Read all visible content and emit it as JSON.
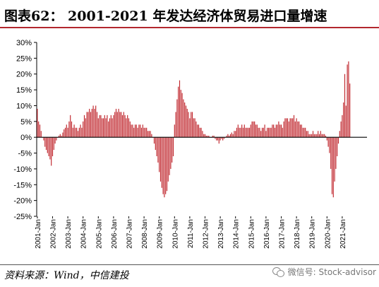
{
  "title": "图表62：  2001-2021 年发达经济体贸易进口量增速",
  "source": "资料来源：Wind，中信建投",
  "watermark": "微信号: Stock-advisor",
  "colors": {
    "bar": "#c0272d",
    "axis": "#000000",
    "title_rule": "#b3272e",
    "text": "#000000"
  },
  "chart_data": {
    "type": "bar",
    "title": "",
    "xlabel": "",
    "ylabel": "",
    "ylim": [
      -25,
      30
    ],
    "yticks": [
      "-25%",
      "-20%",
      "-15%",
      "-10%",
      "-5%",
      "0%",
      "5%",
      "10%",
      "15%",
      "20%",
      "25%",
      "30%"
    ],
    "xticks": [
      "2001-Jan",
      "2002-Jan",
      "2003-Jan",
      "2004-Jan",
      "2005-Jan",
      "2006-Jan",
      "2007-Jan",
      "2008-Jan",
      "2009-Jan",
      "2010-Jan",
      "2011-Jan",
      "2012-Jan",
      "2013-Jan",
      "2014-Jan",
      "2015-Jan",
      "2016-Jan",
      "2017-Jan",
      "2018-Jan",
      "2019-Jan",
      "2020-Jan",
      "2021-Jan"
    ],
    "grid": false,
    "legend": "none",
    "start": "2001-01",
    "frequency": "monthly",
    "series": [
      {
        "values": [
          9,
          5,
          4,
          2,
          0,
          -1,
          -3,
          -4,
          -5,
          -6,
          -7,
          -9,
          -6,
          -4,
          -2,
          -1,
          0,
          0.5,
          1,
          0.5,
          1.5,
          2.5,
          3,
          4,
          3,
          5,
          7,
          5,
          3,
          4,
          3,
          3,
          2,
          3,
          4,
          3,
          5,
          7,
          6,
          8,
          8,
          9,
          8,
          9,
          10,
          9,
          10,
          8,
          6,
          7,
          7,
          6,
          6,
          7,
          6,
          7,
          5,
          6,
          7,
          6,
          7,
          8,
          9,
          8,
          9,
          8,
          8,
          7,
          8,
          7,
          6,
          7,
          6,
          5,
          4,
          4,
          3,
          4,
          4,
          3,
          4,
          4,
          3,
          4,
          3,
          3,
          3,
          2,
          2,
          2,
          1,
          0,
          -2,
          -4,
          -6,
          -8,
          -11,
          -14,
          -16,
          -18,
          -19,
          -18,
          -17,
          -14,
          -12,
          -10,
          -8,
          -6,
          4,
          8,
          12,
          16,
          18,
          15,
          14,
          12,
          11,
          10,
          9,
          8,
          6,
          8,
          8,
          6,
          6,
          5,
          4,
          4,
          3,
          3,
          2,
          1,
          1,
          0.5,
          0.5,
          0.5,
          0,
          0,
          0.5,
          0.5,
          -0.5,
          -1,
          -1,
          -2,
          -1,
          -0.5,
          -1,
          -0.5,
          0,
          0.5,
          1,
          0.5,
          1,
          1.5,
          1,
          2,
          2,
          3,
          4,
          3,
          3,
          4,
          3,
          4,
          3,
          3,
          3,
          3,
          4,
          5,
          5,
          5,
          4,
          4,
          3,
          3,
          2,
          3,
          3,
          4,
          2,
          3,
          3,
          3,
          3,
          4,
          4,
          3,
          4,
          4,
          5,
          4,
          4,
          3,
          5,
          6,
          6,
          6,
          5,
          6,
          6,
          6,
          7,
          5,
          6,
          5,
          5,
          4,
          4,
          3,
          3,
          3,
          2,
          2,
          1,
          1,
          1,
          2,
          1,
          1,
          1,
          2,
          1,
          2,
          1,
          1,
          1,
          0.5,
          -1,
          -3,
          -5,
          -10,
          -18,
          -19,
          -14,
          -10,
          -6,
          -2,
          2,
          5,
          7,
          11,
          20,
          10,
          23,
          24,
          17
        ]
      }
    ]
  }
}
